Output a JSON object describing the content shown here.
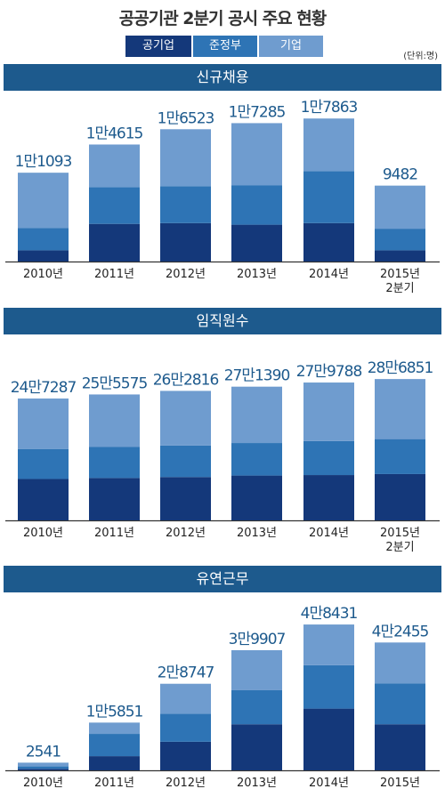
{
  "title": "공공기관 2분기 공시 주요 현황",
  "unit": "(단위:명)",
  "legend": [
    {
      "label": "공기업",
      "color": "#14387a"
    },
    {
      "label": "준정부",
      "color": "#2e74b5"
    },
    {
      "label": "기업",
      "color": "#6f9ccf"
    }
  ],
  "chart_data": [
    {
      "type": "bar",
      "title": "신규채용",
      "categories": [
        "2010년",
        "2011년",
        "2012년",
        "2013년",
        "2014년",
        "2015년\n2분기"
      ],
      "totals": [
        11093,
        14615,
        16523,
        17285,
        17863,
        9482
      ],
      "value_labels": [
        "1만1093",
        "1만4615",
        "1만6523",
        "1만7285",
        "1만7863",
        "9482"
      ],
      "series": [
        {
          "name": "공기업",
          "values": [
            1400,
            4700,
            4800,
            4600,
            4800,
            1400
          ]
        },
        {
          "name": "준정부",
          "values": [
            2800,
            4600,
            4600,
            4900,
            6500,
            2700
          ]
        },
        {
          "name": "기업",
          "values": [
            6893,
            5315,
            7123,
            7785,
            6563,
            5382
          ]
        }
      ],
      "ylim": [
        0,
        20000
      ]
    },
    {
      "type": "bar",
      "title": "임직원수",
      "categories": [
        "2010년",
        "2011년",
        "2012년",
        "2013년",
        "2014년",
        "2015년\n2분기"
      ],
      "totals": [
        247287,
        255575,
        262816,
        271390,
        279788,
        286851
      ],
      "value_labels": [
        "24만7287",
        "25만5575",
        "26만2816",
        "27만1390",
        "27만9788",
        "28만6851"
      ],
      "series": [
        {
          "name": "공기업",
          "values": [
            84000,
            86000,
            88000,
            91000,
            92000,
            94000
          ]
        },
        {
          "name": "준정부",
          "values": [
            61000,
            63000,
            64000,
            66000,
            69000,
            71000
          ]
        },
        {
          "name": "기업",
          "values": [
            102287,
            106575,
            110816,
            114390,
            118788,
            121851
          ]
        }
      ],
      "ylim": [
        0,
        325000
      ]
    },
    {
      "type": "bar",
      "title": "유연근무",
      "categories": [
        "2010년",
        "2011년",
        "2012년",
        "2013년",
        "2014년",
        "2015년"
      ],
      "totals": [
        2541,
        15851,
        28747,
        39907,
        48431,
        42455
      ],
      "value_labels": [
        "2541",
        "1만5851",
        "2만8747",
        "3만9907",
        "4만8431",
        "4만2455"
      ],
      "series": [
        {
          "name": "공기업",
          "values": [
            500,
            4700,
            9500,
            15300,
            20500,
            15300
          ]
        },
        {
          "name": "준정부",
          "values": [
            800,
            7400,
            9300,
            11300,
            14400,
            13500
          ]
        },
        {
          "name": "기업",
          "values": [
            1241,
            3751,
            9947,
            13307,
            13531,
            13655
          ]
        }
      ],
      "ylim": [
        0,
        52000
      ]
    }
  ]
}
